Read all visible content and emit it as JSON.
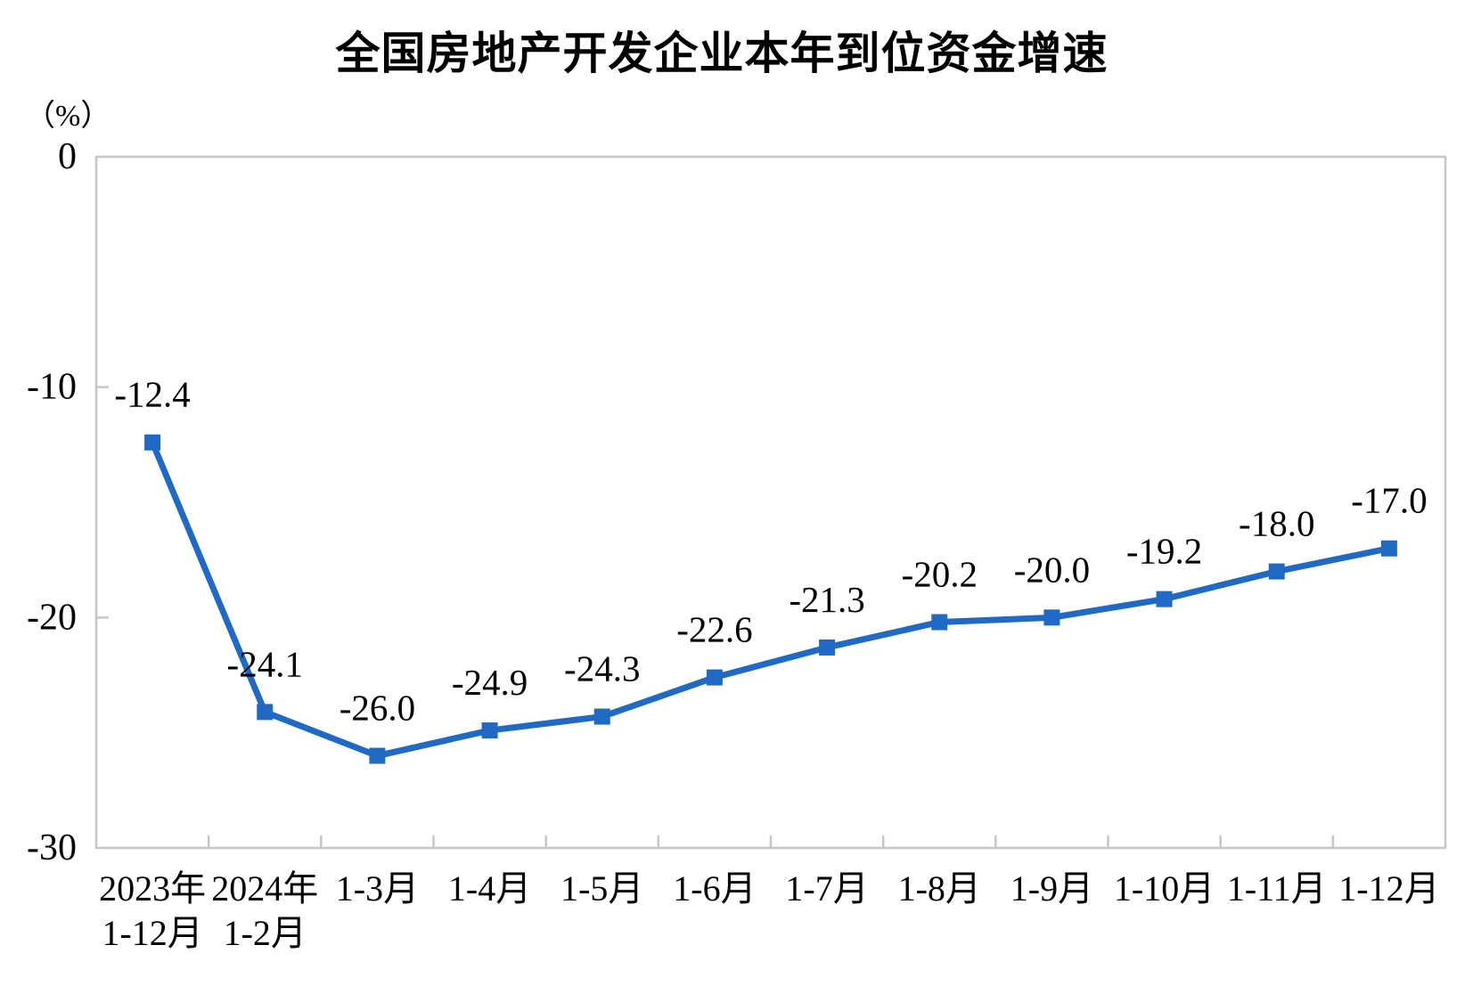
{
  "chart_data": {
    "type": "line",
    "title": "全国房地产开发企业本年到位资金增速",
    "unit_label": "（%）",
    "xlabel": "",
    "ylabel": "（%）",
    "categories": [
      "2023年\n1-12月",
      "2024年\n1-2月",
      "1-3月",
      "1-4月",
      "1-5月",
      "1-6月",
      "1-7月",
      "1-8月",
      "1-9月",
      "1-10月",
      "1-11月",
      "1-12月"
    ],
    "values": [
      -12.4,
      -24.1,
      -26.0,
      -24.9,
      -24.3,
      -22.6,
      -21.3,
      -20.2,
      -20.0,
      -19.2,
      -18.0,
      -17.0
    ],
    "labels": [
      "-12.4",
      "-24.1",
      "-26.0",
      "-24.9",
      "-24.3",
      "-22.6",
      "-21.3",
      "-20.2",
      "-20.0",
      "-19.2",
      "-18.0",
      "-17.0"
    ],
    "ylim": [
      -30,
      0
    ],
    "yticks": [
      0,
      -10,
      -20,
      -30
    ],
    "ytick_labels": [
      "0",
      "-10",
      "-20",
      "-30"
    ],
    "grid": false,
    "legend": "none",
    "marker": "square",
    "line_color": "#2069C4",
    "axis_color": "#C6C6C6",
    "text_color": "#000000",
    "background_color": "#FFFFFF"
  }
}
